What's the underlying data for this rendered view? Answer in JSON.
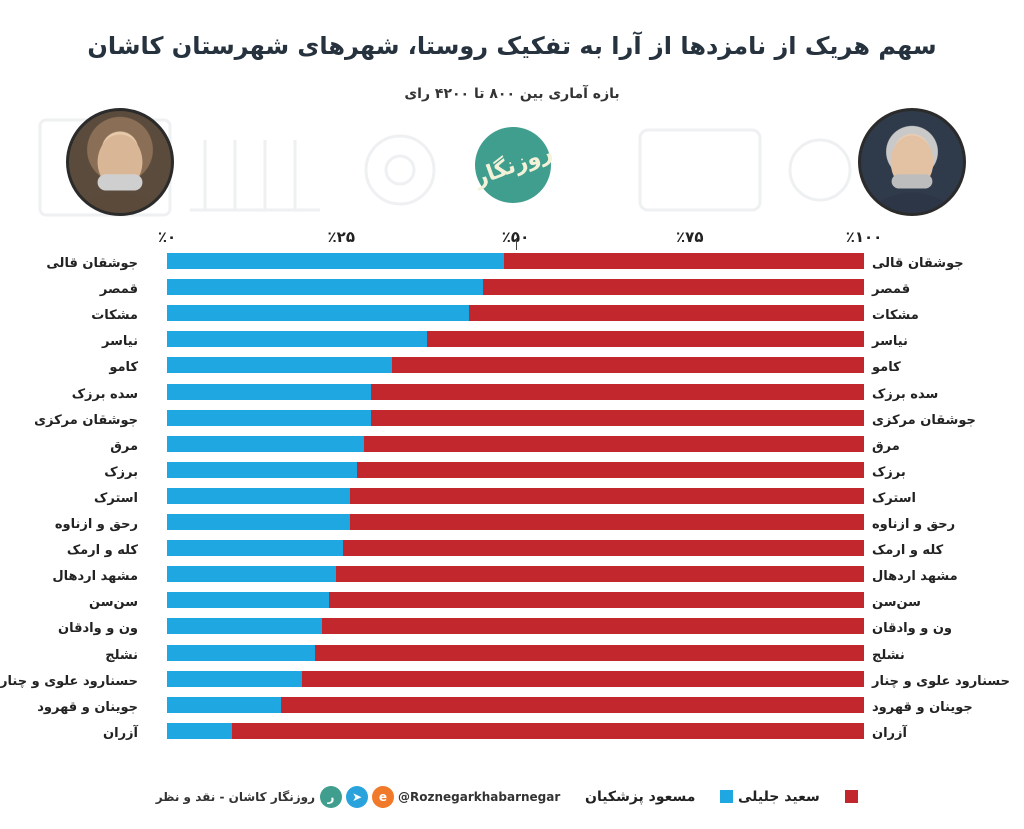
{
  "title": "سهم هریک از نامزدها از آرا به تفکیک روستا، شهرهای شهرستان کاشان",
  "subtitle": "بازه آماری بین ۸۰۰ تا ۴۲۰۰ رای",
  "logo_text": "روزنگار",
  "colors": {
    "pezeshkian": "#1ea7e1",
    "jalili": "#c2272d"
  },
  "chart_data": {
    "type": "bar",
    "orientation": "horizontal",
    "stacked": true,
    "xlim": [
      0,
      100
    ],
    "ticks": [
      "٪۰",
      "٪۲۵",
      "٪۵۰",
      "٪۷۵",
      "٪۱۰۰"
    ],
    "tick_values": [
      0,
      25,
      50,
      75,
      100
    ],
    "categories": [
      "جوشقان قالی",
      "قمصر",
      "مشکات",
      "نیاسر",
      "کامو",
      "سده برزک",
      "جوشقان مرکزی",
      "مرق",
      "برزک",
      "استرک",
      "رحق و ازناوه",
      "کله و ارمک",
      "مشهد اردهال",
      "سن‌سن",
      "ون و وادقان",
      "نشلج",
      "حسنارود علوی و چنار",
      "جوینان و قهرود",
      "آزران"
    ],
    "series": [
      {
        "name": "مسعود پزشکیان",
        "values": [
          48.3,
          45.3,
          43.3,
          37.3,
          32.3,
          29.3,
          29.3,
          28.3,
          27.3,
          26.3,
          26.3,
          25.3,
          24.3,
          23.3,
          22.3,
          21.3,
          19.3,
          16.3,
          9.3
        ]
      },
      {
        "name": "سعید جلیلی",
        "values": [
          51.7,
          54.7,
          56.7,
          62.7,
          67.7,
          70.7,
          70.7,
          71.7,
          72.7,
          73.7,
          73.7,
          74.7,
          75.7,
          76.7,
          77.7,
          78.7,
          80.7,
          83.7,
          90.7
        ]
      }
    ],
    "legend_position": "bottom"
  },
  "footer": {
    "legend_jalili": "سعید جلیلی",
    "legend_pezeshkian": "مسعود پزشکیان",
    "handle": "@Roznegarkhabarnegar",
    "credit": "روزنگار کاشان - نقد و نظر"
  }
}
